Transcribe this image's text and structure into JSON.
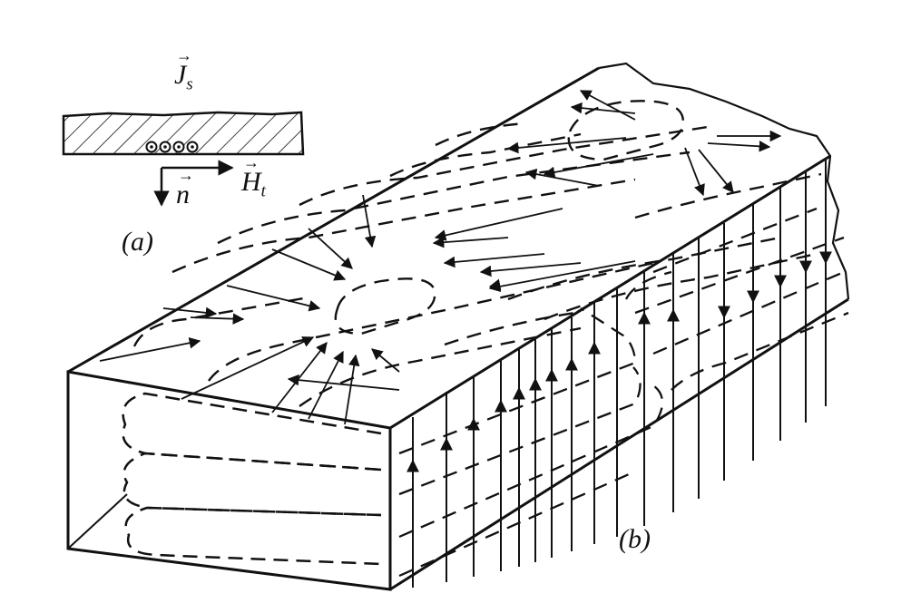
{
  "panel_a": {
    "vector_Js": "J",
    "vector_Js_sub": "s",
    "vector_n": "n",
    "vector_Ht": "H",
    "vector_Ht_sub": "t",
    "caption": "(a)"
  },
  "panel_b": {
    "caption": "(b)"
  },
  "colors": {
    "ink": "#111111",
    "background": "#ffffff"
  }
}
